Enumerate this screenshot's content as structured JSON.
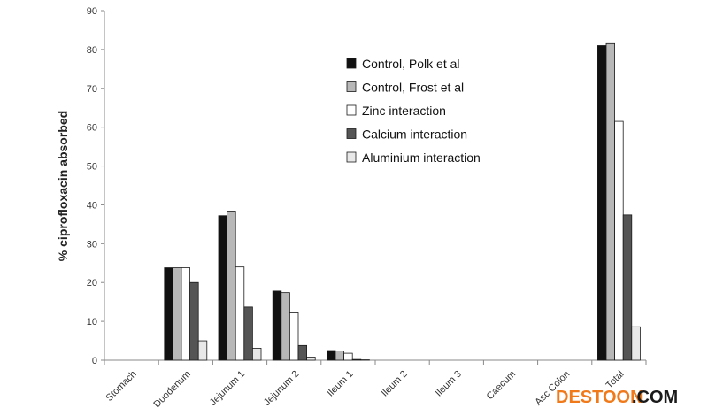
{
  "chart_data": {
    "type": "bar",
    "ylabel": "% ciprofloxacin absorbed",
    "xlabel": "",
    "ylim": [
      0,
      90
    ],
    "yticks": [
      0,
      10,
      20,
      30,
      40,
      50,
      60,
      70,
      80,
      90
    ],
    "grid": false,
    "legend_position": "top-right",
    "categories": [
      "Stomach",
      "Duodenum",
      "Jejunum 1",
      "Jejunum 2",
      "Ileum 1",
      "Ileum 2",
      "Ileum 3",
      "Caecum",
      "Asc Colon",
      "Total"
    ],
    "series": [
      {
        "name": "Control, Polk et al",
        "color": "#111111",
        "values": [
          0,
          23.8,
          37.2,
          17.8,
          2.5,
          0,
          0,
          0,
          0,
          81
        ]
      },
      {
        "name": "Control, Frost et al",
        "color": "#b8b8b8",
        "values": [
          0,
          23.8,
          38.4,
          17.4,
          2.4,
          0,
          0,
          0,
          0,
          81.5
        ]
      },
      {
        "name": "Zinc interaction",
        "color": "#ffffff",
        "values": [
          0,
          23.8,
          24,
          12.2,
          1.8,
          0,
          0,
          0,
          0,
          61.5
        ]
      },
      {
        "name": "Calcium interaction",
        "color": "#555555",
        "values": [
          0,
          20,
          13.7,
          3.8,
          0.2,
          0,
          0,
          0,
          0,
          37.4
        ]
      },
      {
        "name": "Aluminium interaction",
        "color": "#e8e8e8",
        "values": [
          0,
          5,
          3.1,
          0.8,
          0.1,
          0,
          0,
          0,
          0,
          8.6
        ]
      }
    ]
  },
  "watermark": {
    "part1": "DESTOON",
    "part2": ".COM"
  }
}
